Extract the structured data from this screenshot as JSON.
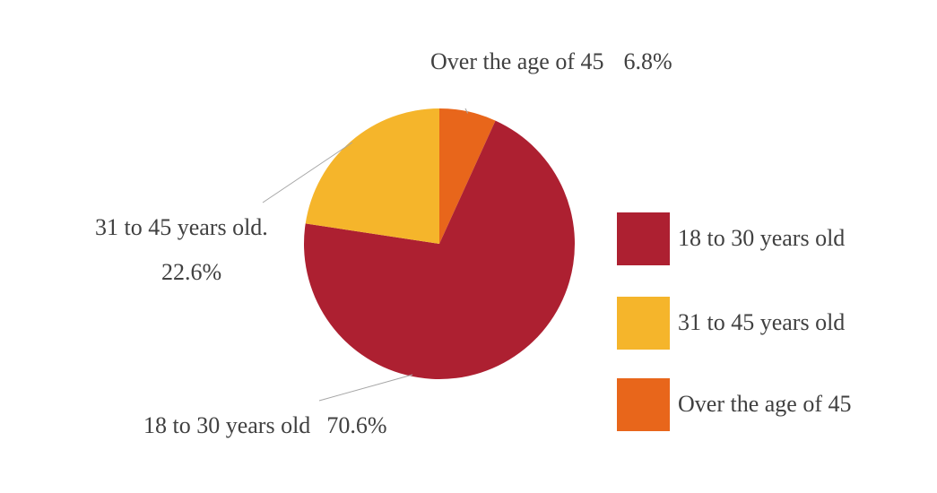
{
  "chart_data": {
    "type": "pie",
    "title": "",
    "slices": [
      {
        "label": "18 to 30 years old",
        "value": 70.6,
        "display_value": "70.6%",
        "data_label": "18 to 30 years old",
        "color": "#ad2031"
      },
      {
        "label": "31 to 45 years old",
        "value": 22.6,
        "display_value": "22.6%",
        "data_label": "31 to 45 years old.",
        "color": "#f5b52b"
      },
      {
        "label": "Over the age of 45",
        "value": 6.8,
        "display_value": "6.8%",
        "data_label": "Over the age of 45",
        "color": "#e8661b"
      }
    ],
    "legend": {
      "placement": "right",
      "entries": [
        "18 to 30 years old",
        "31 to 45 years old",
        "Over the age of 45"
      ]
    }
  }
}
